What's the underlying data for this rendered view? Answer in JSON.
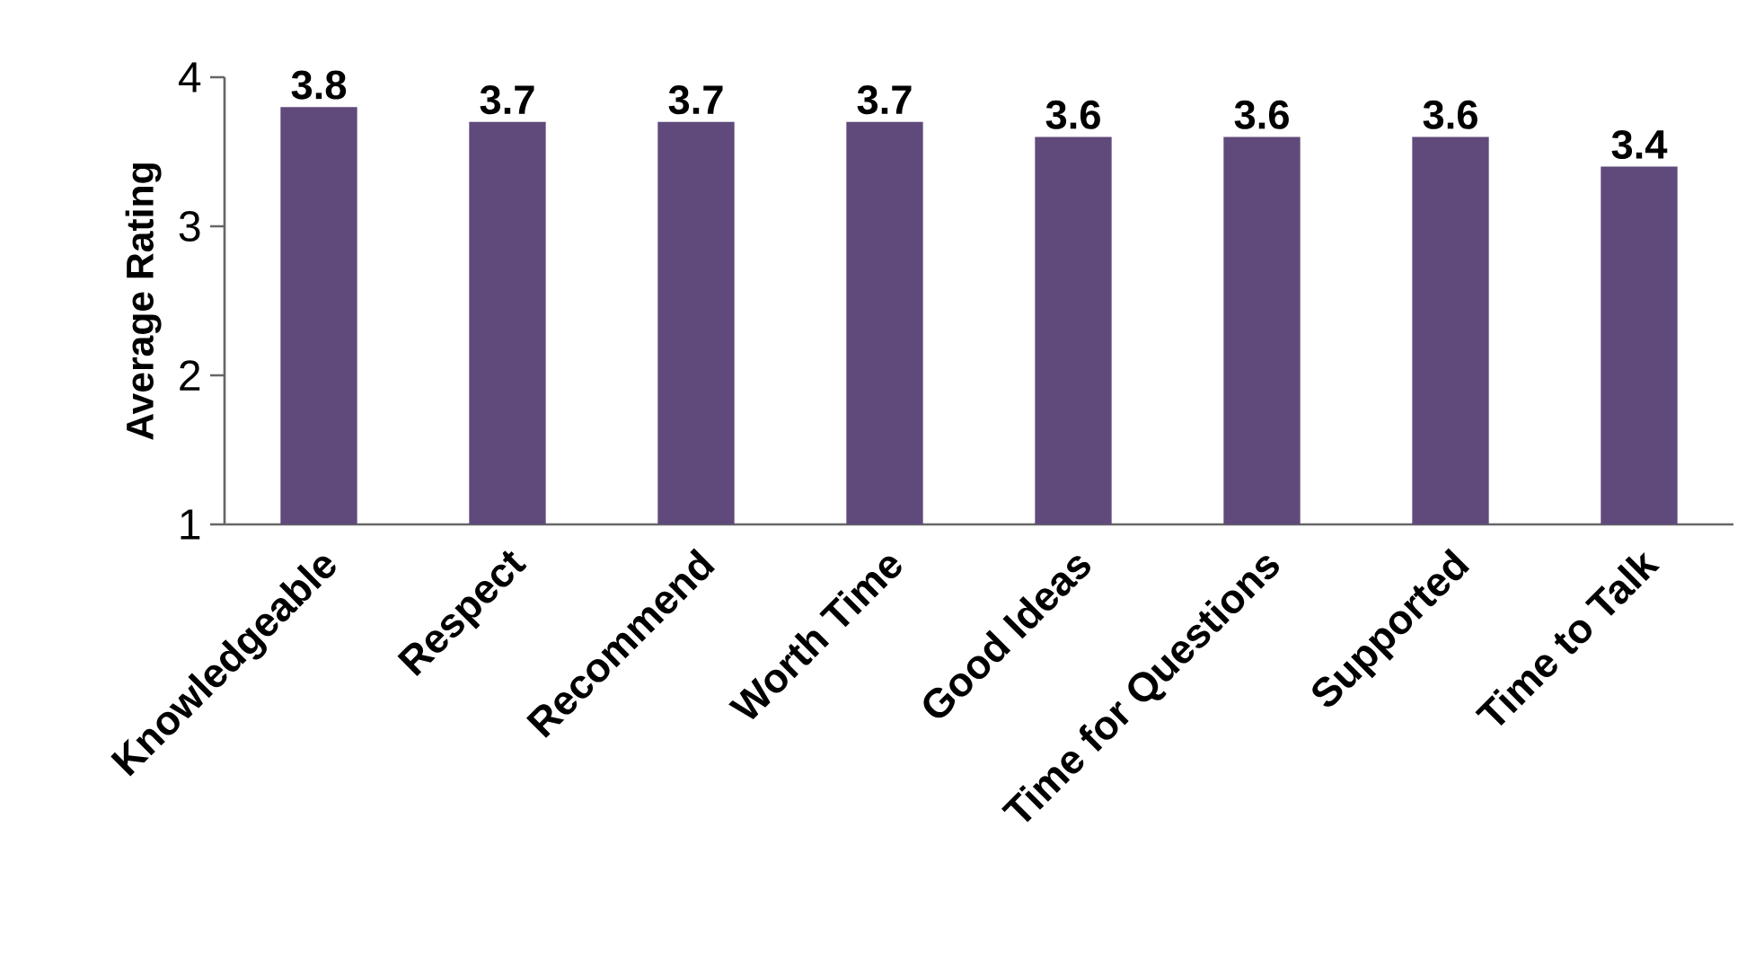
{
  "chart_data": {
    "type": "bar",
    "ylabel": "Average Rating",
    "categories": [
      "Knowledgeable",
      "Respect",
      "Recommend",
      "Worth Time",
      "Good Ideas",
      "Time for Questions",
      "Supported",
      "Time to Talk"
    ],
    "values": [
      3.8,
      3.7,
      3.7,
      3.7,
      3.6,
      3.6,
      3.6,
      3.4
    ],
    "color": "#604a7b",
    "ylim": [
      1,
      4
    ],
    "yticks": [
      1,
      2,
      3,
      4
    ],
    "data_labels": true
  }
}
